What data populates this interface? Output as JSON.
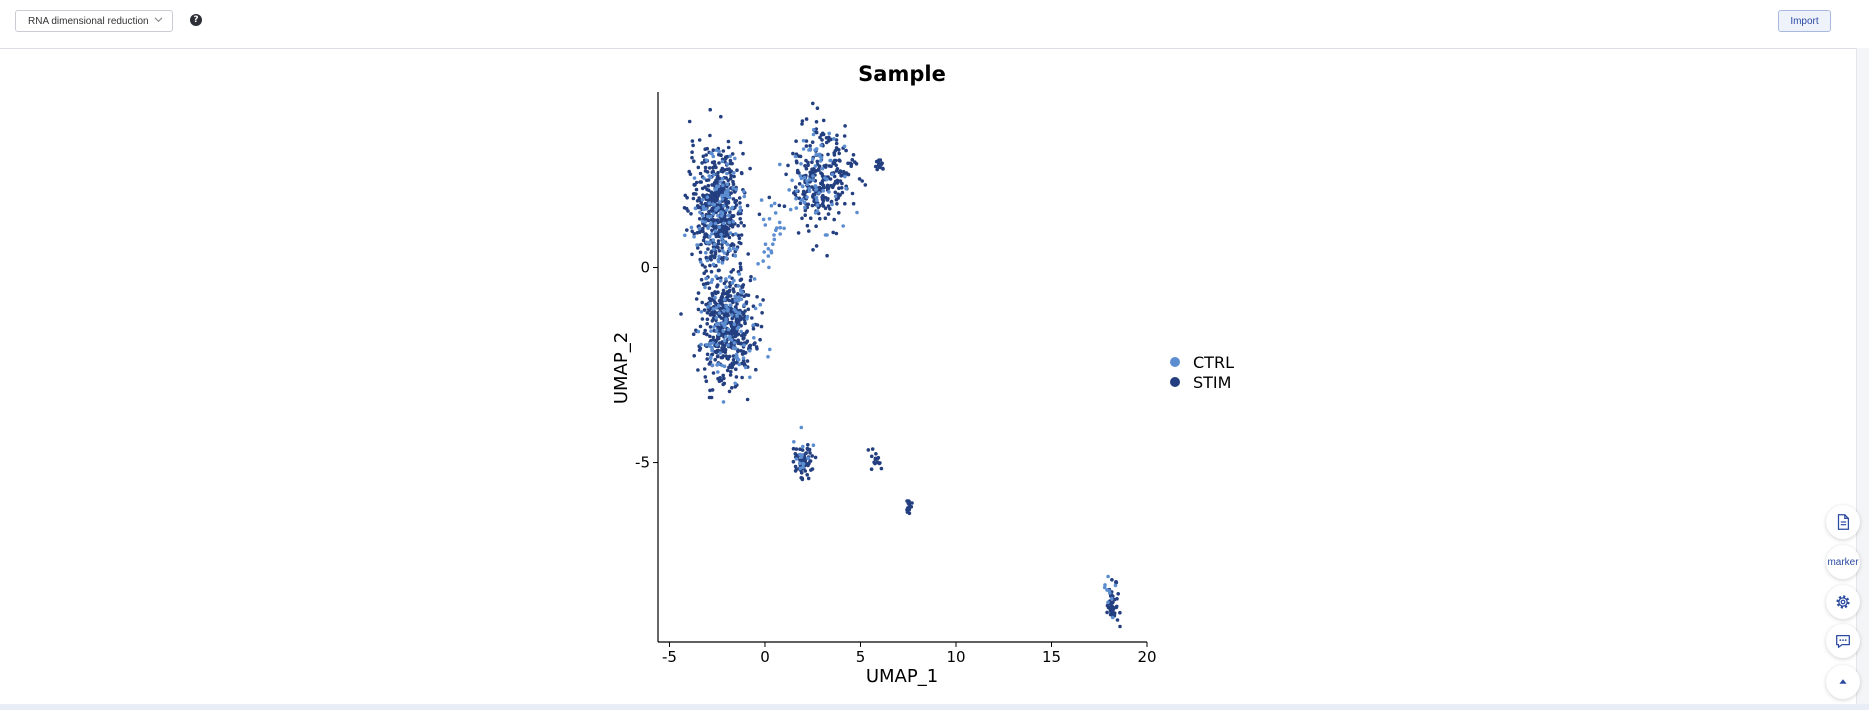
{
  "toolbar": {
    "reduction_select": "RNA dimensional reduction",
    "help_icon": "?",
    "import_label": "Import"
  },
  "side_tools": [
    {
      "icon": "document-icon"
    },
    {
      "label": "marker"
    },
    {
      "icon": "gear-icon"
    },
    {
      "icon": "chat-icon"
    },
    {
      "icon": "arrow-up-icon"
    }
  ],
  "colors": {
    "accent": "#2b4aa0",
    "ctrl": "#5b8dd0",
    "stim": "#233f80"
  },
  "chart_data": {
    "type": "scatter",
    "title": "Sample",
    "xlabel": "UMAP_1",
    "ylabel": "UMAP_2",
    "xlim": [
      -5.6,
      20
    ],
    "ylim": [
      -9.6,
      4.5
    ],
    "x_ticks": [
      "-5",
      "0",
      "5",
      "10",
      "15",
      "20"
    ],
    "x_tick_values": [
      -5,
      0,
      5,
      10,
      15,
      20
    ],
    "y_ticks": [
      "0",
      "-5"
    ],
    "y_tick_values": [
      0,
      -5
    ],
    "grid": false,
    "legend_position": "right",
    "series": [
      {
        "name": "CTRL",
        "color": "#5b8dd0",
        "clusters": [
          {
            "cx": -2.4,
            "cy": 1.3,
            "sx": 1.0,
            "sy": 1.1,
            "n": 120
          },
          {
            "cx": -1.8,
            "cy": -1.4,
            "sx": 1.0,
            "sy": 1.0,
            "n": 110
          },
          {
            "cx": 2.8,
            "cy": 2.2,
            "sx": 1.1,
            "sy": 0.9,
            "n": 70
          },
          {
            "cx": 0.2,
            "cy": 0.9,
            "sx": 0.5,
            "sy": 0.7,
            "n": 25
          },
          {
            "cx": 2.0,
            "cy": -4.8,
            "sx": 0.3,
            "sy": 0.3,
            "n": 15
          },
          {
            "cx": 18.0,
            "cy": -8.4,
            "sx": 0.25,
            "sy": 0.35,
            "n": 10
          }
        ]
      },
      {
        "name": "STIM",
        "color": "#233f80",
        "clusters": [
          {
            "cx": -2.5,
            "cy": 1.5,
            "sx": 1.0,
            "sy": 1.1,
            "n": 500
          },
          {
            "cx": -2.0,
            "cy": -1.5,
            "sx": 1.0,
            "sy": 1.0,
            "n": 450
          },
          {
            "cx": 3.0,
            "cy": 2.3,
            "sx": 1.1,
            "sy": 0.9,
            "n": 280
          },
          {
            "cx": 6.0,
            "cy": 2.6,
            "sx": 0.15,
            "sy": 0.1,
            "n": 15
          },
          {
            "cx": 2.0,
            "cy": -4.9,
            "sx": 0.35,
            "sy": 0.35,
            "n": 60
          },
          {
            "cx": 5.8,
            "cy": -4.9,
            "sx": 0.3,
            "sy": 0.2,
            "n": 15
          },
          {
            "cx": 7.5,
            "cy": -6.1,
            "sx": 0.12,
            "sy": 0.15,
            "n": 15
          },
          {
            "cx": 18.2,
            "cy": -8.6,
            "sx": 0.3,
            "sy": 0.4,
            "n": 50
          }
        ]
      }
    ]
  }
}
